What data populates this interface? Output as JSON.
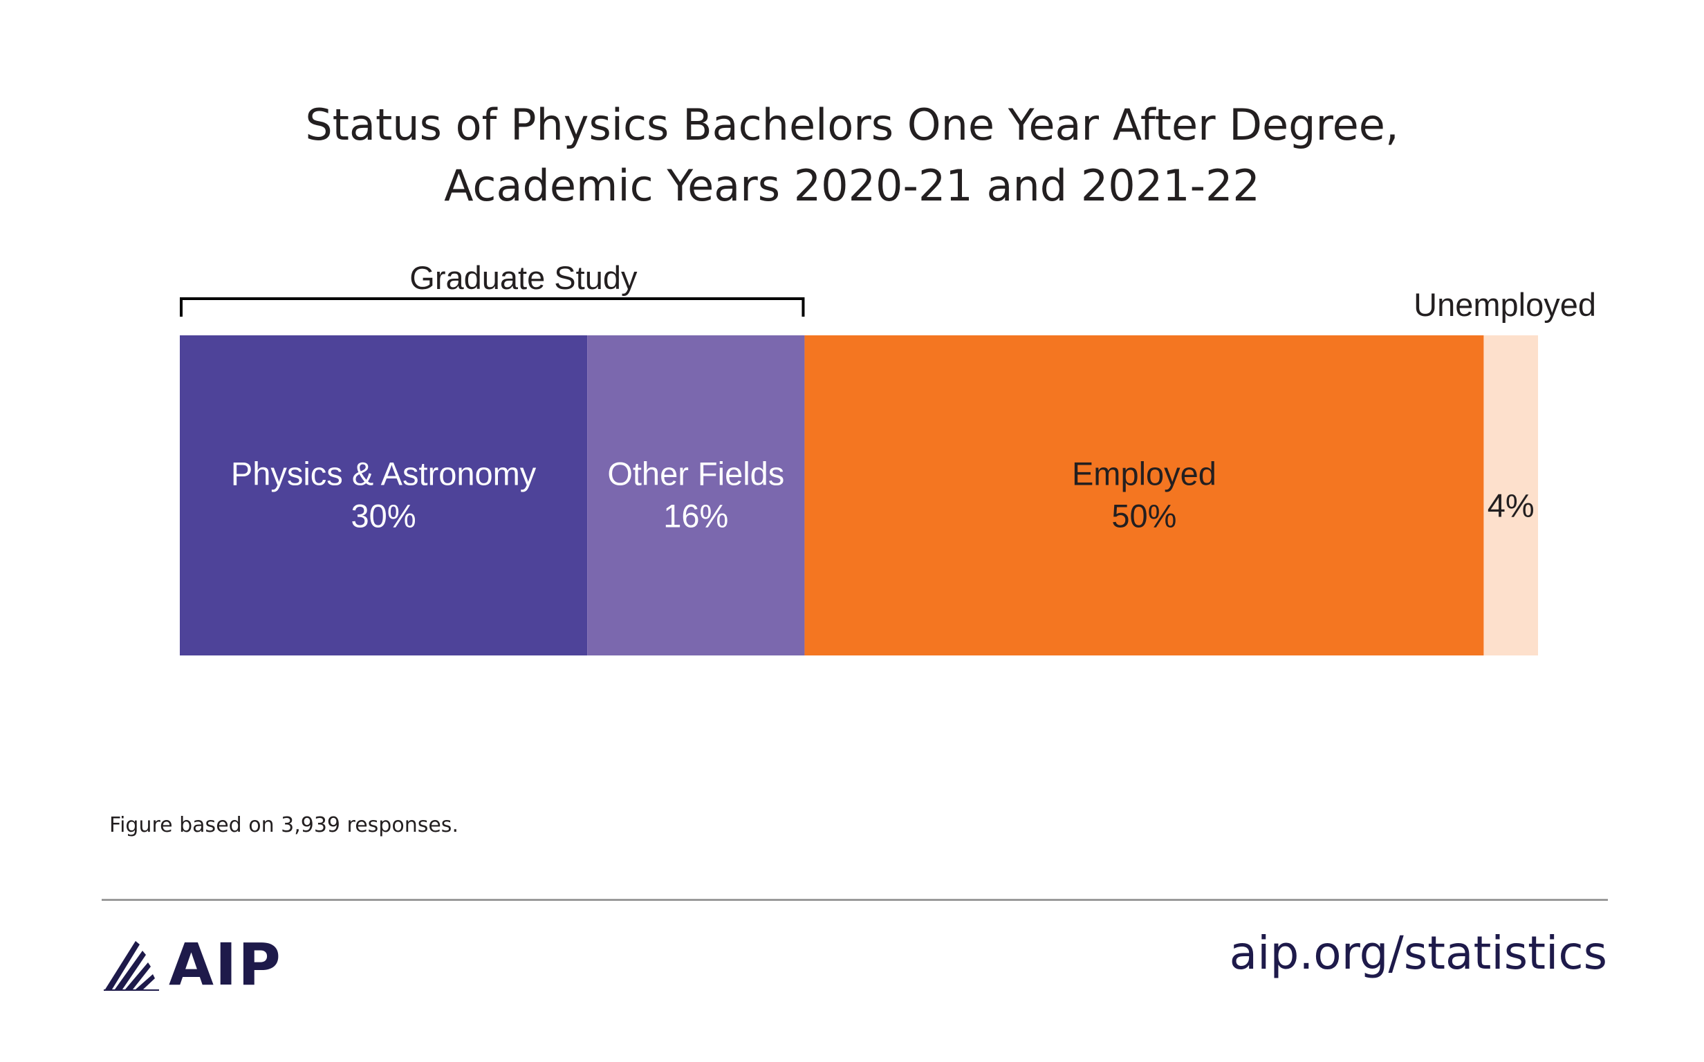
{
  "title": {
    "line1": "Status of Physics Bachelors One Year After Degree,",
    "line2": "Academic Years 2020-21 and 2021-22"
  },
  "chart_data": {
    "type": "bar",
    "orientation": "horizontal-stacked",
    "segments": [
      {
        "name": "Physics & Astronomy",
        "label": "Physics & Astronomy",
        "value": 30,
        "display": "30%",
        "color": "#4e4399",
        "text_color": "#ffffff"
      },
      {
        "name": "Other Fields",
        "label": "Other Fields",
        "value": 16,
        "display": "16%",
        "color": "#7b68ae",
        "text_color": "#ffffff"
      },
      {
        "name": "Employed",
        "label": "Employed",
        "value": 50,
        "display": "50%",
        "color": "#f47621",
        "text_color": "#231f20"
      },
      {
        "name": "Unemployed",
        "label": "Unemployed",
        "value": 4,
        "display": "4%",
        "color": "#fde0cc",
        "text_color": "#231f20"
      }
    ],
    "group": {
      "label": "Graduate Study",
      "spans": [
        "Physics & Astronomy",
        "Other Fields"
      ]
    },
    "unit": "%",
    "total": 100
  },
  "note": "Figure based on 3,939 responses.",
  "footer": {
    "logo_text": "AIP",
    "logo_icon": "aip-rays-icon",
    "site": "aip.org/statistics",
    "brand_color": "#1e1a4a"
  }
}
